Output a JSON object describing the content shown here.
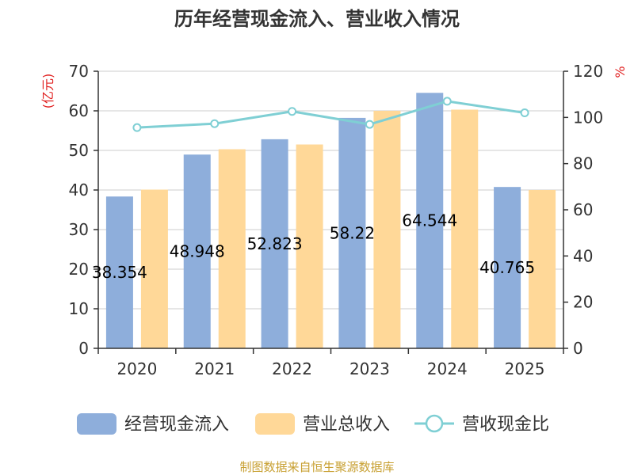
{
  "chart_data": {
    "type": "bar",
    "title": "历年经营现金流入、营业收入情况",
    "left_unit": "(亿元)",
    "right_unit": "%",
    "categories": [
      "2020",
      "2021",
      "2022",
      "2023",
      "2024",
      "2025"
    ],
    "series": [
      {
        "name": "经营现金流入",
        "type": "bar",
        "axis": "left",
        "color": "#8eaedb",
        "values": [
          38.354,
          48.948,
          52.823,
          58.22,
          64.544,
          40.765
        ],
        "labels": [
          "38.354",
          "48.948",
          "52.823",
          "58.22",
          "64.544",
          "40.765"
        ]
      },
      {
        "name": "营业总收入",
        "type": "bar",
        "axis": "left",
        "color": "#ffd898",
        "values": [
          40.1,
          50.3,
          51.5,
          60.0,
          60.3,
          40.0
        ]
      },
      {
        "name": "营收现金比",
        "type": "line",
        "axis": "right",
        "color": "#7fcfd4",
        "values": [
          95.6,
          97.3,
          102.6,
          97.0,
          107.0,
          102.0
        ]
      }
    ],
    "left_axis": {
      "min": 0,
      "max": 70,
      "ticks": [
        0,
        10,
        20,
        30,
        40,
        50,
        60,
        70
      ]
    },
    "right_axis": {
      "min": 0,
      "max": 120,
      "ticks": [
        0,
        20,
        40,
        60,
        80,
        100,
        120
      ]
    },
    "grid": true,
    "legend_position": "bottom"
  },
  "source_text": "制图数据来自恒生聚源数据库"
}
